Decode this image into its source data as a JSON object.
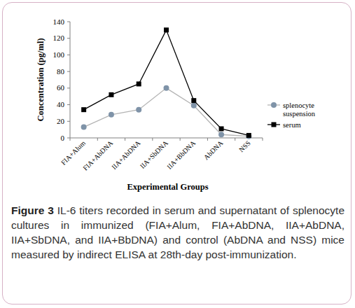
{
  "chart_data": {
    "type": "line",
    "x_label": "Experimental Groups",
    "y_label": "Concentration (pg/ml)",
    "figure_label": "Figure 3",
    "caption": "IL-6 titers recorded in serum and supernatant of splenocyte cultures in immunized (FIA+Alum, FIA+AbDNA, IIA+AbDNA, IIA+SbDNA, and IIA+BbDNA) and control (AbDNA and NSS) mice measured by indirect ELISA at 28th-day post-immunization.",
    "categories": [
      "FIA+Alum",
      "FIA+AbDNA",
      "IIA+AbDNA",
      "IIA+SbDNA",
      "IIA+BbDNA",
      "AbDNA",
      "NSS"
    ],
    "series": [
      {
        "name": "splenocyte suspension",
        "color": "#7f93a8",
        "marker": "circle",
        "values": [
          13,
          28,
          34,
          60,
          39,
          4,
          2
        ]
      },
      {
        "name": "serum",
        "color": "#000000",
        "marker": "square",
        "values": [
          34,
          52,
          65,
          130,
          45,
          11,
          3
        ]
      }
    ],
    "ylim": [
      0,
      140
    ],
    "yticks": [
      0,
      20,
      40,
      60,
      80,
      100,
      120,
      140
    ],
    "grid": false,
    "legend": "right"
  }
}
